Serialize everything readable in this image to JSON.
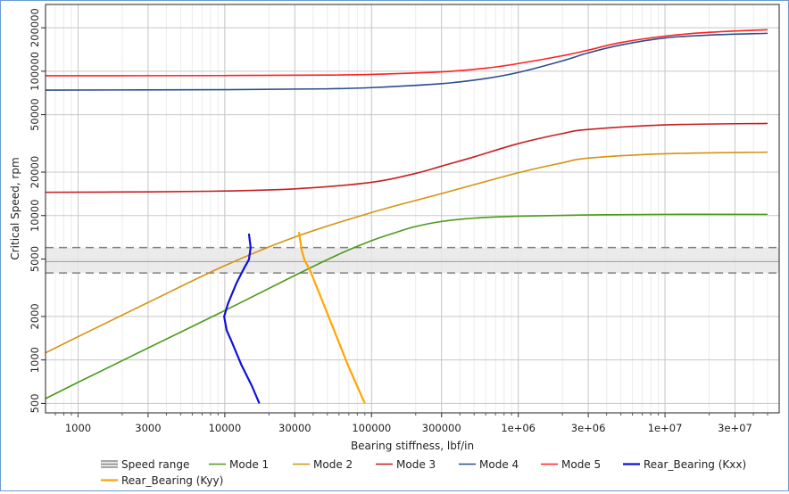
{
  "chart_data": {
    "type": "line",
    "title": "",
    "xlabel": "Bearing stiffness, lbf/in",
    "ylabel": "Critical Speed, rpm",
    "xscale": "log",
    "yscale": "log",
    "xlim": [
      600,
      60000000
    ],
    "ylim": [
      430,
      290000
    ],
    "grid": true,
    "legend_position": "bottom",
    "xticks": [
      1000,
      3000,
      10000,
      30000,
      100000,
      300000,
      1000000,
      3000000,
      10000000,
      30000000
    ],
    "xtick_labels": [
      "1000",
      "3000",
      "10000",
      "30000",
      "100000",
      "300000",
      "1e+06",
      "3e+06",
      "1e+07",
      "3e+07"
    ],
    "yticks": [
      500,
      1000,
      2000,
      5000,
      10000,
      20000,
      50000,
      100000,
      200000
    ],
    "ytick_labels": [
      "500",
      "1000",
      "2000",
      "5000",
      "10000",
      "20000",
      "50000",
      "100000",
      "200000"
    ],
    "speed_range": {
      "name": "Speed range",
      "min": 4000,
      "max": 6000,
      "nominal": 4800,
      "color": "#808080"
    },
    "series": [
      {
        "name": "Mode 1",
        "color": "#4a9a1a",
        "x": [
          600,
          1000,
          3000,
          10000,
          30000,
          60000,
          100000,
          150000,
          200000,
          300000,
          500000,
          1000000,
          3000000,
          10000000,
          50000000
        ],
        "y": [
          540,
          700,
          1210,
          2200,
          3850,
          5400,
          6700,
          7700,
          8400,
          9100,
          9600,
          9900,
          10100,
          10200,
          10200
        ]
      },
      {
        "name": "Mode 2",
        "color": "#d4930f",
        "x": [
          600,
          1000,
          3000,
          10000,
          30000,
          100000,
          300000,
          1000000,
          2000000,
          3000000,
          10000000,
          50000000
        ],
        "y": [
          1120,
          1450,
          2500,
          4500,
          7100,
          10500,
          14200,
          19800,
          23200,
          25000,
          26800,
          27500
        ]
      },
      {
        "name": "Mode 3",
        "color": "#c81e1e",
        "x": [
          600,
          3000,
          10000,
          30000,
          100000,
          200000,
          300000,
          500000,
          1000000,
          2000000,
          3000000,
          10000000,
          50000000
        ],
        "y": [
          14500,
          14600,
          14800,
          15300,
          17000,
          19600,
          22000,
          25500,
          31500,
          37000,
          39500,
          42500,
          43500
        ]
      },
      {
        "name": "Mode 4",
        "color": "#2c4d8e",
        "x": [
          600,
          10000,
          50000,
          100000,
          300000,
          600000,
          1000000,
          2000000,
          3000000,
          5000000,
          10000000,
          20000000,
          50000000
        ],
        "y": [
          74000,
          74500,
          75500,
          77000,
          82000,
          89000,
          98000,
          118000,
          134000,
          152000,
          170000,
          178000,
          183000
        ]
      },
      {
        "name": "Mode 5",
        "color": "#ff2020",
        "x": [
          600,
          10000,
          50000,
          100000,
          300000,
          600000,
          1000000,
          2000000,
          3000000,
          5000000,
          10000000,
          20000000,
          50000000
        ],
        "y": [
          93000,
          93300,
          94000,
          95000,
          99000,
          105000,
          113000,
          128000,
          140000,
          158000,
          175000,
          186000,
          194000
        ]
      },
      {
        "name": "Rear_Bearing (Kxx)",
        "color": "#1010dd",
        "x": [
          14600,
          15000,
          14600,
          13500,
          12000,
          10500,
          9900,
          10300,
          11000,
          13000,
          15300,
          17200
        ],
        "y": [
          7500,
          6000,
          4950,
          4300,
          3400,
          2450,
          2000,
          1600,
          1380,
          920,
          660,
          500
        ]
      },
      {
        "name": "Rear_Bearing (Kyy)",
        "color": "#ffa500",
        "x": [
          32000,
          33500,
          35000,
          38000,
          50000,
          70000,
          90000
        ],
        "y": [
          7700,
          5700,
          4900,
          4200,
          2100,
          890,
          500
        ]
      }
    ]
  }
}
